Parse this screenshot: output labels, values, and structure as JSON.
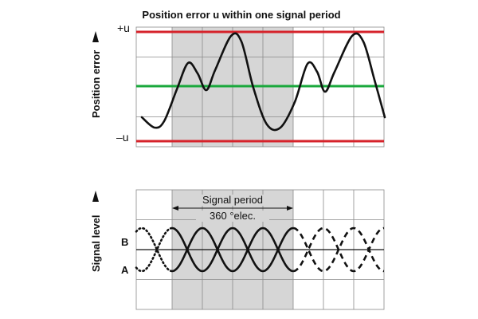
{
  "top": {
    "title": "Position error u within one signal period",
    "y_label": "Position error",
    "plus_label": "+u",
    "minus_label": "–u"
  },
  "bottom": {
    "y_label": "Signal level",
    "signal_b": "B",
    "signal_a": "A",
    "period_line1": "Signal period",
    "period_line2": "360 °elec."
  },
  "colors": {
    "limit": "#d6232b",
    "center": "#1aa83c",
    "grid": "#8a8a8a",
    "shade": "#d6d6d6",
    "curve": "#111111"
  }
}
